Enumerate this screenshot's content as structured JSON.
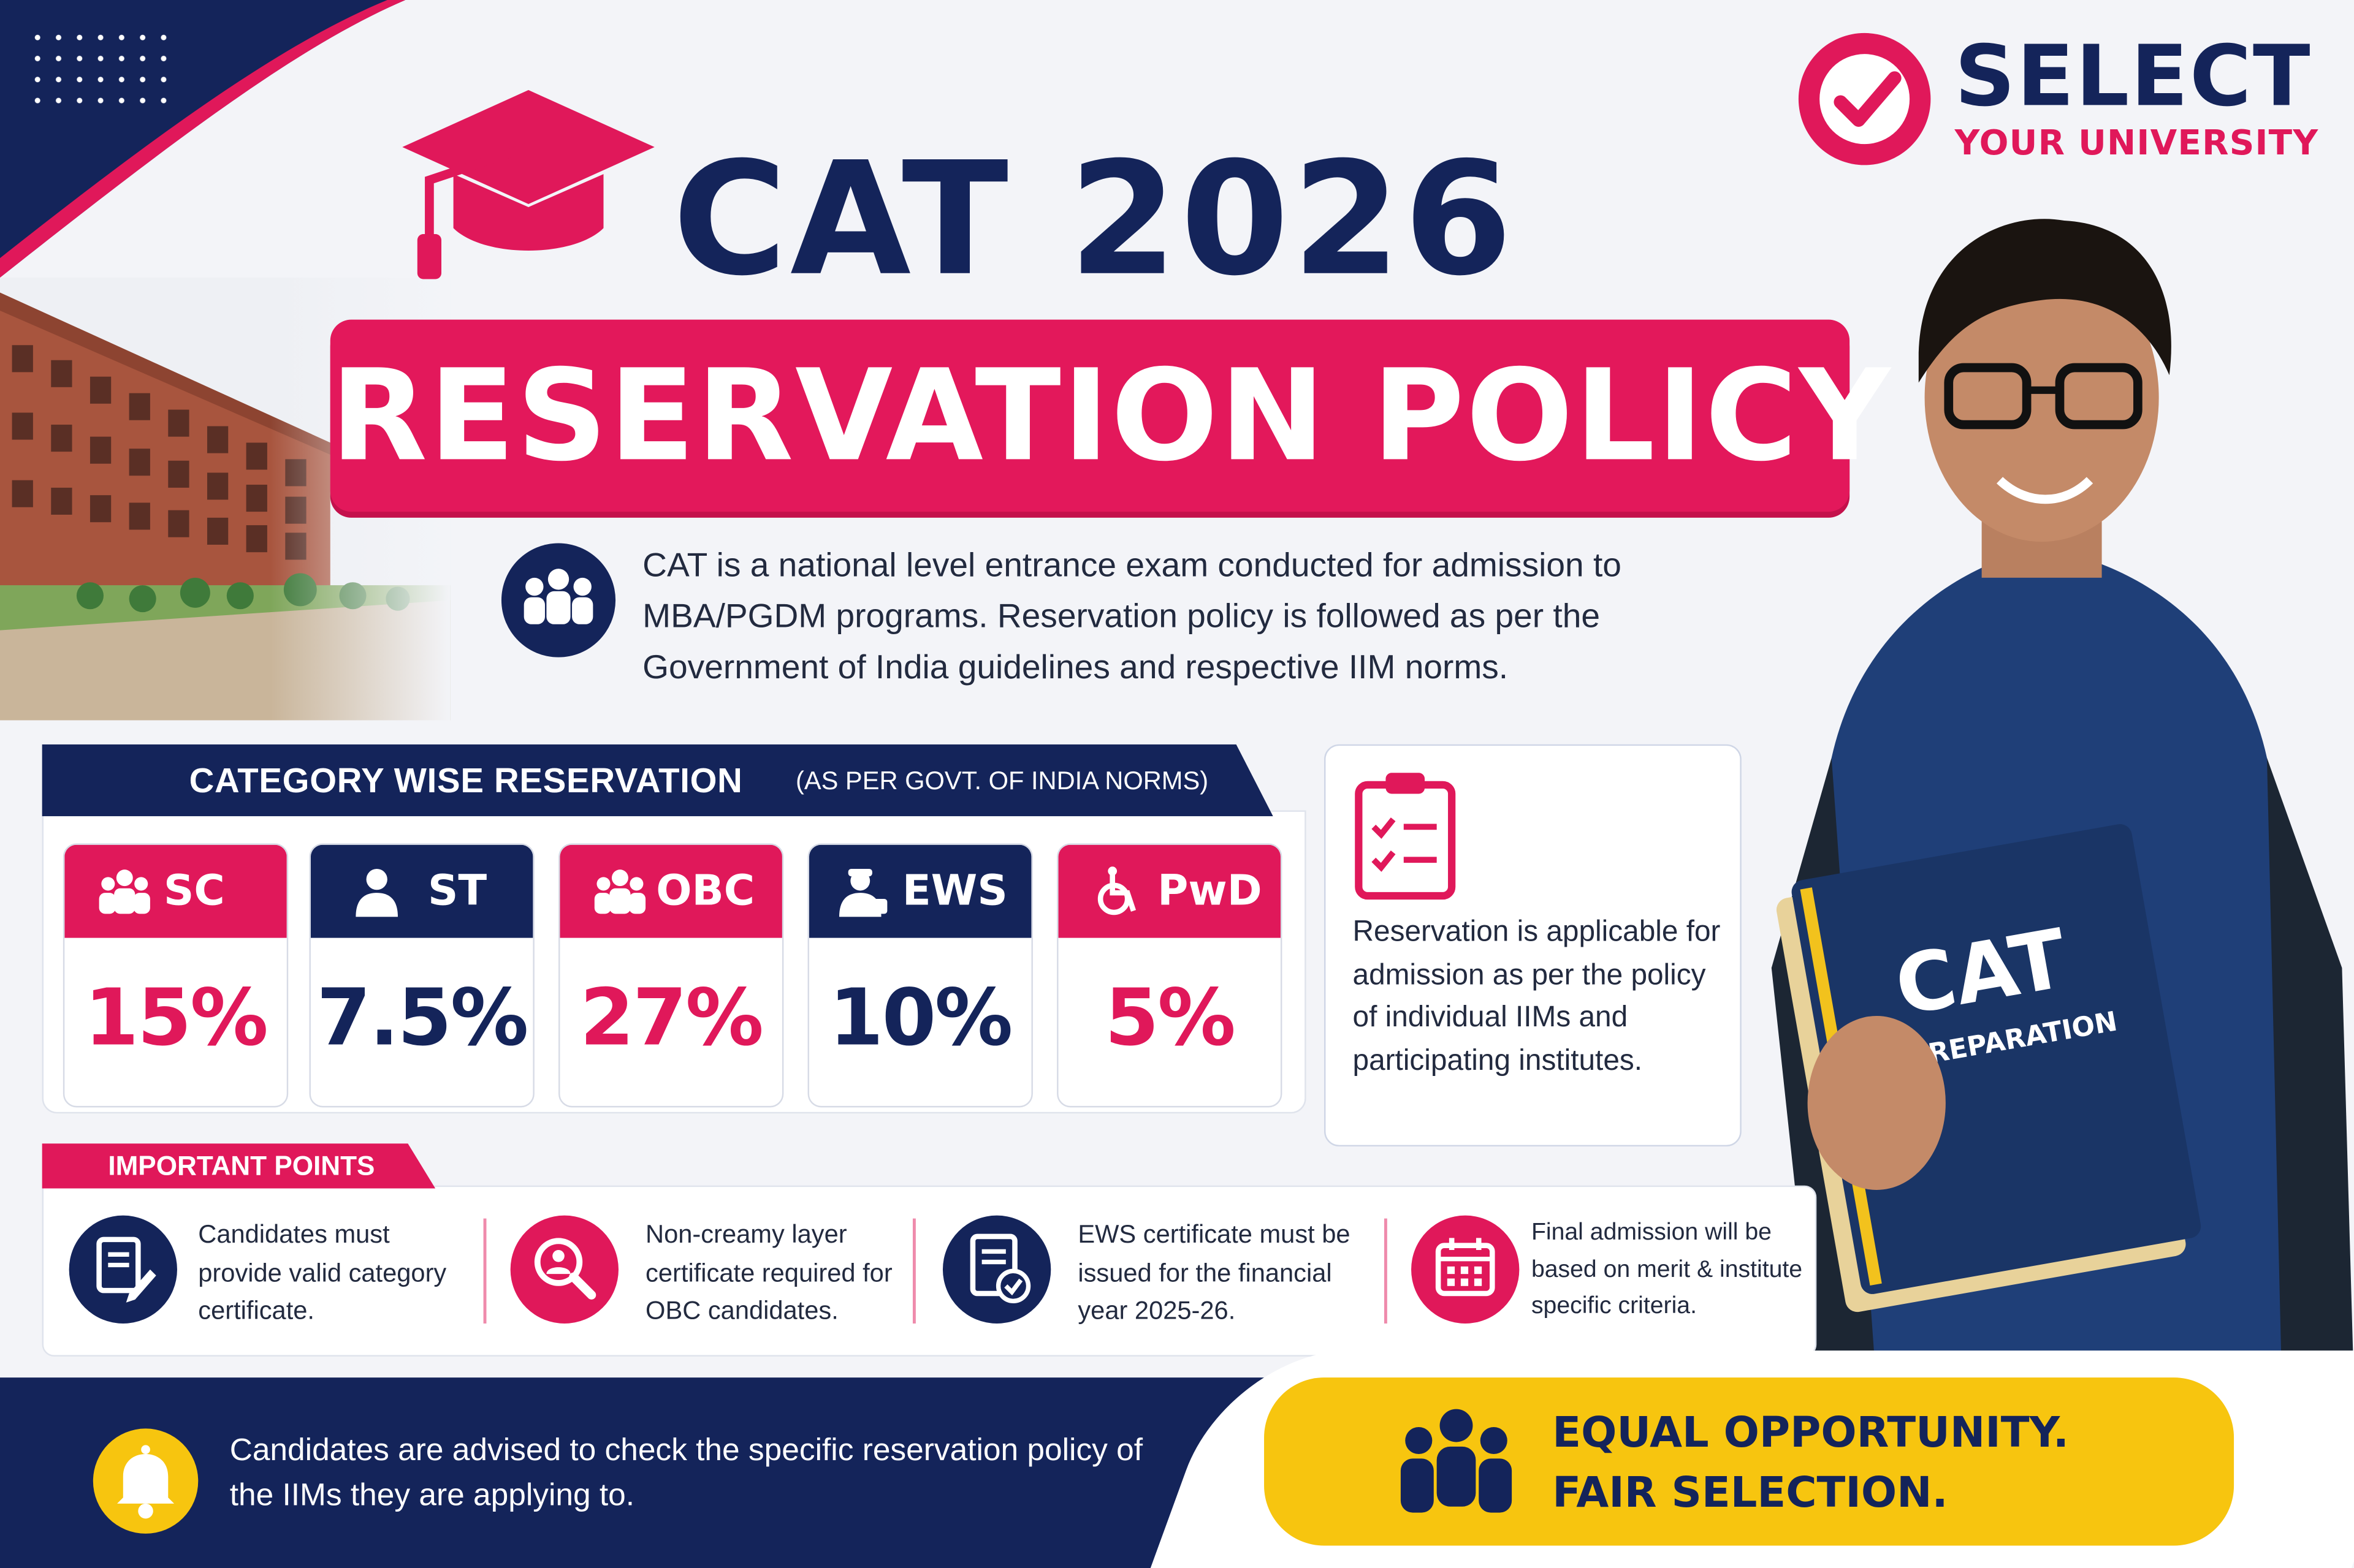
{
  "brand": {
    "name": "SELECT",
    "tagline": "YOUR UNIVERSITY"
  },
  "title": {
    "main": "CAT 2026",
    "sub": "RESERVATION POLICY"
  },
  "intro": {
    "text": "CAT is a national level entrance exam conducted for admission to MBA/PGDM programs. Reservation policy is followed as per the Government of India guidelines and respective IIM norms."
  },
  "category_section": {
    "heading": "CATEGORY WISE RESERVATION",
    "note": "(AS PER GOVT. OF INDIA NORMS)",
    "cards": [
      {
        "label": "SC",
        "value": "15%",
        "icon": "group-people-icon",
        "color": "#e0185a"
      },
      {
        "label": "ST",
        "value": "7.5%",
        "icon": "person-icon",
        "color": "#14245a"
      },
      {
        "label": "OBC",
        "value": "27%",
        "icon": "group-people-icon",
        "color": "#e0185a"
      },
      {
        "label": "EWS",
        "value": "10%",
        "icon": "worker-icon",
        "color": "#14245a"
      },
      {
        "label": "PwD",
        "value": "5%",
        "icon": "wheelchair-icon",
        "color": "#e0185a"
      }
    ]
  },
  "side_note": {
    "text": "Reservation is applicable for admission as per the policy of individual IIMs and participating institutes.",
    "icon": "clipboard-checklist-icon"
  },
  "important": {
    "heading": "IMPORTANT POINTS",
    "points": [
      {
        "text": "Candidates must provide valid category certificate.",
        "icon": "document-pen-icon"
      },
      {
        "text": "Non-creamy layer certificate required for OBC candidates.",
        "icon": "search-person-icon"
      },
      {
        "text": "EWS certificate must be issued for the financial year 2025-26.",
        "icon": "certificate-check-icon"
      },
      {
        "text": "Final admission will be based on merit & institute specific criteria.",
        "icon": "calendar-icon"
      }
    ]
  },
  "footer": {
    "advice": "Candidates are advised to check the specific reservation policy of the IIMs they are applying to.",
    "slogan_line1": "EQUAL OPPORTUNITY.",
    "slogan_line2": "FAIR SELECTION."
  },
  "book": {
    "title": "CAT",
    "subtitle": "PREPARATION"
  },
  "colors": {
    "navy": "#14245a",
    "pink": "#e0185a",
    "yellow": "#f7c50f"
  }
}
